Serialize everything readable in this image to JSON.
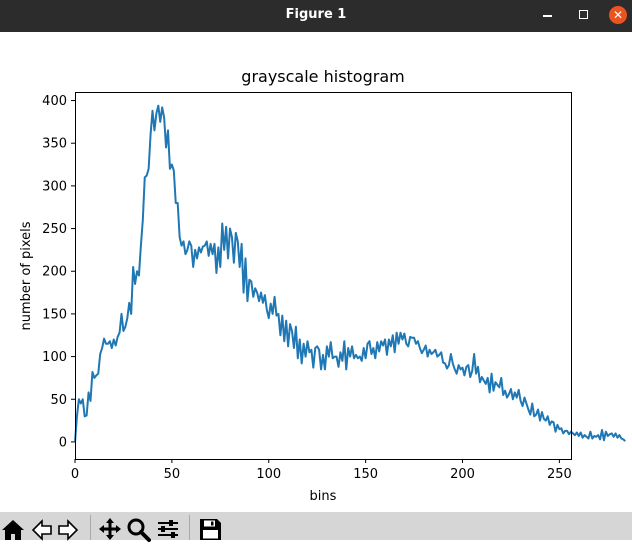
{
  "window": {
    "title": "Figure 1",
    "controls": [
      "minimize-icon",
      "maximize-icon",
      "close-icon"
    ]
  },
  "toolbar": {
    "buttons": [
      {
        "name": "home-button",
        "icon": "home-icon"
      },
      {
        "name": "back-button",
        "icon": "left-arrow-icon"
      },
      {
        "name": "forward-button",
        "icon": "right-arrow-icon"
      },
      {
        "name": "pan-button",
        "icon": "move-icon"
      },
      {
        "name": "zoom-button",
        "icon": "magnifier-icon"
      },
      {
        "name": "configure-subplots-button",
        "icon": "sliders-icon"
      },
      {
        "name": "save-button",
        "icon": "floppy-disk-icon"
      }
    ]
  },
  "chart_data": {
    "type": "line",
    "title": "grayscale histogram",
    "xlabel": "bins",
    "ylabel": "number of pixels",
    "xlim": [
      0,
      256
    ],
    "ylim": [
      -20,
      410
    ],
    "xticks": [
      0,
      50,
      100,
      150,
      200,
      250
    ],
    "yticks": [
      0,
      50,
      100,
      150,
      200,
      250,
      300,
      350,
      400
    ],
    "grid": false,
    "line_color": "#1f77b4",
    "series": [
      {
        "values": [
          0,
          30,
          50,
          45,
          50,
          30,
          31,
          58,
          48,
          82,
          75,
          78,
          80,
          103,
          110,
          121,
          115,
          115,
          118,
          110,
          120,
          113,
          123,
          128,
          150,
          130,
          135,
          145,
          163,
          150,
          205,
          185,
          200,
          195,
          230,
          260,
          310,
          312,
          320,
          360,
          388,
          365,
          385,
          394,
          375,
          392,
          380,
          345,
          365,
          320,
          325,
          318,
          280,
          280,
          240,
          230,
          235,
          220,
          225,
          235,
          230,
          205,
          225,
          215,
          228,
          222,
          229,
          230,
          235,
          218,
          232,
          220,
          232,
          198,
          228,
          205,
          256,
          225,
          252,
          215,
          250,
          240,
          210,
          245,
          235,
          205,
          232,
          175,
          215,
          165,
          190,
          188,
          170,
          180,
          175,
          165,
          175,
          163,
          172,
          155,
          145,
          162,
          150,
          170,
          148,
          150,
          125,
          148,
          118,
          142,
          112,
          138,
          130,
          110,
          135,
          98,
          120,
          92,
          115,
          100,
          118,
          105,
          108,
          87,
          110,
          112,
          108,
          85,
          102,
          85,
          112,
          100,
          117,
          98,
          100,
          100,
          88,
          105,
          95,
          118,
          85,
          110,
          100,
          112,
          98,
          102,
          98,
          100,
          95,
          110,
          98,
          115,
          118,
          103,
          110,
          98,
          117,
          106,
          118,
          113,
          120,
          102,
          120,
          112,
          125,
          105,
          128,
          115,
          128,
          120,
          127,
          115,
          112,
          123,
          122,
          122,
          115,
          118,
          110,
          104,
          108,
          113,
          100,
          108,
          103,
          105,
          108,
          100,
          102,
          105,
          93,
          92,
          86,
          90,
          103,
          92,
          85,
          80,
          90,
          85,
          87,
          78,
          88,
          90,
          76,
          83,
          103,
          80,
          88,
          70,
          76,
          72,
          68,
          75,
          58,
          80,
          60,
          70,
          67,
          64,
          75,
          55,
          60,
          52,
          56,
          62,
          50,
          58,
          52,
          61,
          48,
          42,
          52,
          45,
          38,
          32,
          45,
          30,
          32,
          38,
          25,
          35,
          27,
          25,
          30,
          20,
          24,
          23,
          12,
          20,
          15,
          16,
          10,
          13,
          13,
          9,
          12,
          10,
          8,
          11,
          7,
          11,
          5,
          8,
          6,
          4,
          12,
          4,
          7,
          6,
          8,
          3,
          14,
          2,
          12,
          7,
          9,
          10,
          6,
          10,
          5,
          8,
          4,
          3,
          1
        ],
        "x_start": 0,
        "x_step": 1
      }
    ]
  }
}
